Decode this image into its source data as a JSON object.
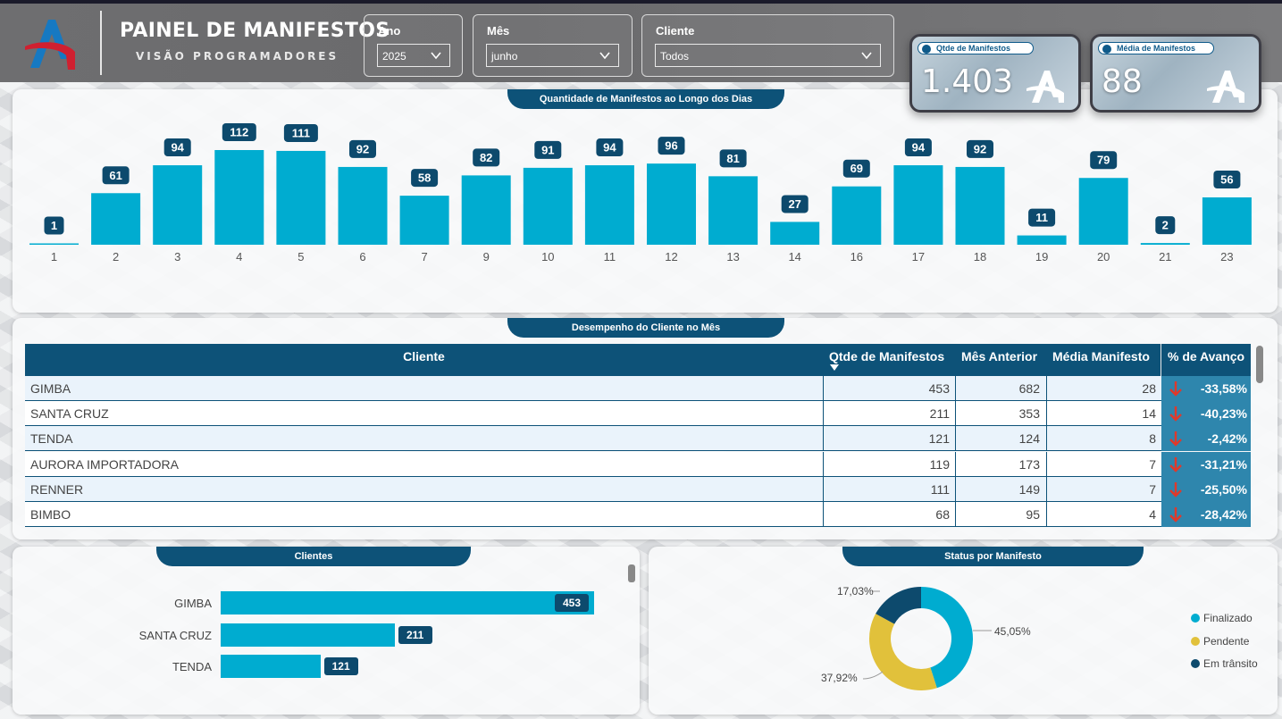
{
  "header": {
    "title": "PAINEL DE MANIFESTOS",
    "subtitle": "VISÃO PROGRAMADORES"
  },
  "filters": {
    "ano": {
      "label": "Ano",
      "value": "2025"
    },
    "mes": {
      "label": "Mês",
      "value": "junho"
    },
    "cliente": {
      "label": "Cliente",
      "value": "Todos"
    }
  },
  "kpis": {
    "qtde": {
      "label": "Qtde de Manifestos",
      "value": "1.403"
    },
    "media": {
      "label": "Média de Manifestos",
      "value": "88"
    }
  },
  "daily_chart": {
    "tab": "Quantidade de Manifestos ao Longo dos Dias"
  },
  "chart_data": [
    {
      "type": "bar",
      "title": "Quantidade de Manifestos ao Longo dos Dias",
      "categories": [
        "1",
        "2",
        "3",
        "4",
        "5",
        "6",
        "7",
        "9",
        "10",
        "11",
        "12",
        "13",
        "14",
        "16",
        "17",
        "18",
        "19",
        "20",
        "21",
        "23"
      ],
      "values": [
        1,
        61,
        94,
        112,
        111,
        92,
        58,
        82,
        91,
        94,
        96,
        81,
        27,
        69,
        94,
        92,
        11,
        79,
        2,
        56
      ],
      "ylim": [
        0,
        112
      ],
      "grid": false
    },
    {
      "type": "bar",
      "title": "Clientes",
      "categories": [
        "GIMBA",
        "SANTA CRUZ",
        "TENDA"
      ],
      "values": [
        453,
        211,
        121
      ],
      "orientation": "horizontal"
    },
    {
      "type": "pie",
      "title": "Status por Manifesto",
      "categories": [
        "Finalizado",
        "Pendente",
        "Em trânsito"
      ],
      "values": [
        45.05,
        37.92,
        17.03
      ],
      "labels": [
        "45,05%",
        "37,92%",
        "17,03%"
      ],
      "colors": [
        "#00acd0",
        "#e1c13b",
        "#0d4a6d"
      ],
      "legend": "right"
    }
  ],
  "table": {
    "tab": "Desempenho do Cliente no Mês",
    "headers": {
      "cliente": "Cliente",
      "qtde": "Qtde de Manifestos",
      "anterior": "Mês Anterior",
      "media": "Média Manifesto",
      "avanco": "% de Avanço"
    },
    "rows": [
      {
        "cliente": "GIMBA",
        "qtde": "453",
        "anterior": "682",
        "media": "28",
        "avanco": "-33,58%"
      },
      {
        "cliente": "SANTA CRUZ",
        "qtde": "211",
        "anterior": "353",
        "media": "14",
        "avanco": "-40,23%"
      },
      {
        "cliente": "TENDA",
        "qtde": "121",
        "anterior": "124",
        "media": "8",
        "avanco": "-2,42%"
      },
      {
        "cliente": "AURORA IMPORTADORA",
        "qtde": "119",
        "anterior": "173",
        "media": "7",
        "avanco": "-31,21%"
      },
      {
        "cliente": "RENNER",
        "qtde": "111",
        "anterior": "149",
        "media": "7",
        "avanco": "-25,50%"
      },
      {
        "cliente": "BIMBO",
        "qtde": "68",
        "anterior": "95",
        "media": "4",
        "avanco": "-28,42%"
      }
    ]
  },
  "clients_chart": {
    "tab": "Clientes",
    "bars": [
      {
        "label": "GIMBA",
        "value": "453"
      },
      {
        "label": "SANTA CRUZ",
        "value": "211"
      },
      {
        "label": "TENDA",
        "value": "121"
      }
    ]
  },
  "status_chart": {
    "tab": "Status por Manifesto",
    "labels": {
      "fin": "45,05%",
      "pen": "37,92%",
      "tra": "17,03%"
    },
    "legend": [
      "Finalizado",
      "Pendente",
      "Em trânsito"
    ]
  },
  "colors": {
    "primary": "#0d5278",
    "bar": "#00acd0",
    "label_bg": "#0d4a6d",
    "pendente": "#e1c13b",
    "negative_arrow": "#e0392b",
    "avanco_bg": "#2e86ad"
  }
}
